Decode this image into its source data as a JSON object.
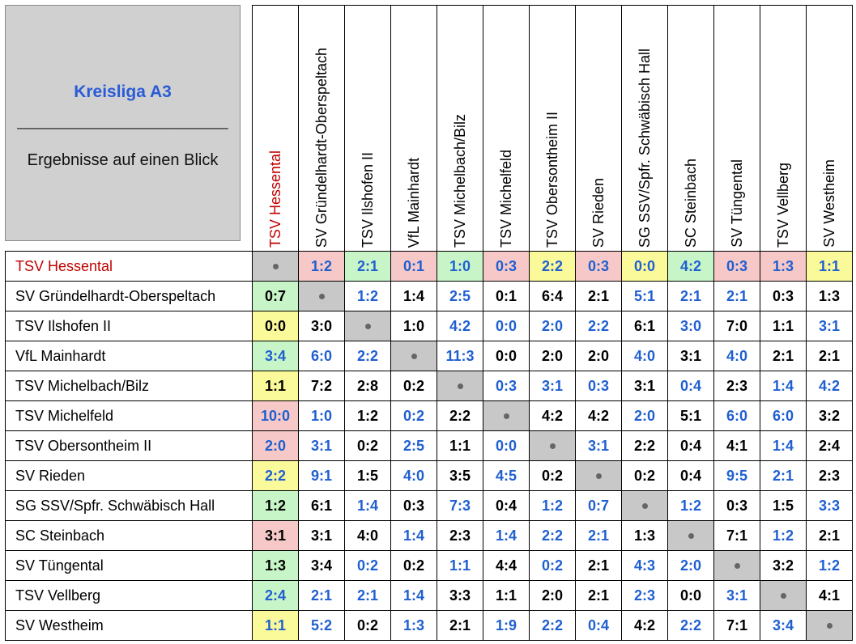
{
  "title": {
    "league": "Kreisliga A3",
    "separator": "__________________________",
    "subtitle": "Ergebnisse auf einen Blick"
  },
  "colors": {
    "highlight_team": "#c00000",
    "blue_score": "#1f5fd0",
    "black_score": "#000000",
    "diagonal": "#c8c8c8",
    "green": "#c8f5c8",
    "pink": "#f7c8c8",
    "yellow": "#fafa9a"
  },
  "teams": [
    "TSV Hessental",
    "SV Gründelhardt-Oberspeltach",
    "TSV Ilshofen II",
    "VfL Mainhardt",
    "TSV Michelbach/Bilz",
    "TSV Michelfeld",
    "TSV Obersontheim II",
    "SV Rieden",
    "SG SSV/Spfr. Schwäbisch Hall",
    "SC Steinbach",
    "SV Tüngental",
    "TSV Vellberg",
    "SV Westheim"
  ],
  "highlight_team_index": 0,
  "results": [
    [
      null,
      "1:2",
      "2:1",
      "0:1",
      "1:0",
      "0:3",
      "2:2",
      "0:3",
      "0:0",
      "4:2",
      "0:3",
      "1:3",
      "1:1"
    ],
    [
      "0:7",
      null,
      "1:2",
      "1:4",
      "2:5",
      "0:1",
      "6:4",
      "2:1",
      "5:1",
      "2:1",
      "2:1",
      "0:3",
      "1:3"
    ],
    [
      "0:0",
      "3:0",
      null,
      "1:0",
      "4:2",
      "0:0",
      "2:0",
      "2:2",
      "6:1",
      "3:0",
      "7:0",
      "1:1",
      "3:1"
    ],
    [
      "3:4",
      "6:0",
      "2:2",
      null,
      "11:3",
      "0:0",
      "2:0",
      "2:0",
      "4:0",
      "3:1",
      "4:0",
      "2:1",
      "2:1"
    ],
    [
      "1:1",
      "7:2",
      "2:8",
      "0:2",
      null,
      "0:3",
      "3:1",
      "0:3",
      "3:1",
      "0:4",
      "2:3",
      "1:4",
      "4:2"
    ],
    [
      "10:0",
      "1:0",
      "1:2",
      "0:2",
      "2:2",
      null,
      "4:2",
      "4:2",
      "2:0",
      "5:1",
      "6:0",
      "6:0",
      "3:2"
    ],
    [
      "2:0",
      "3:1",
      "0:2",
      "2:5",
      "1:1",
      "0:0",
      null,
      "3:1",
      "2:2",
      "0:4",
      "4:1",
      "1:4",
      "2:4"
    ],
    [
      "2:2",
      "9:1",
      "1:5",
      "4:0",
      "3:5",
      "4:5",
      "0:2",
      null,
      "0:2",
      "0:4",
      "9:5",
      "2:1",
      "2:3"
    ],
    [
      "1:2",
      "6:1",
      "1:4",
      "0:3",
      "7:3",
      "0:4",
      "1:2",
      "0:7",
      null,
      "1:2",
      "0:3",
      "1:5",
      "3:3"
    ],
    [
      "3:1",
      "3:1",
      "4:0",
      "1:4",
      "2:3",
      "1:4",
      "2:2",
      "2:1",
      "1:3",
      null,
      "7:1",
      "1:2",
      "2:1"
    ],
    [
      "1:3",
      "3:4",
      "0:2",
      "0:2",
      "1:1",
      "4:4",
      "0:2",
      "2:1",
      "4:3",
      "2:0",
      null,
      "3:2",
      "1:2"
    ],
    [
      "2:4",
      "2:1",
      "2:1",
      "1:4",
      "3:3",
      "1:1",
      "2:0",
      "2:1",
      "2:3",
      "0:0",
      "3:1",
      null,
      "4:1"
    ],
    [
      "1:1",
      "5:2",
      "0:2",
      "1:3",
      "2:1",
      "1:9",
      "2:2",
      "0:4",
      "4:2",
      "2:2",
      "7:1",
      "3:4",
      null
    ]
  ],
  "blue": [
    [
      0,
      1,
      1,
      1,
      1,
      1,
      1,
      1,
      1,
      1,
      1,
      1,
      1
    ],
    [
      0,
      0,
      1,
      0,
      1,
      0,
      0,
      0,
      1,
      1,
      1,
      0,
      0
    ],
    [
      0,
      0,
      0,
      0,
      1,
      1,
      1,
      1,
      0,
      1,
      0,
      0,
      1
    ],
    [
      1,
      1,
      1,
      0,
      1,
      0,
      0,
      0,
      1,
      0,
      1,
      0,
      0
    ],
    [
      0,
      0,
      0,
      0,
      0,
      1,
      1,
      1,
      0,
      1,
      0,
      1,
      1
    ],
    [
      1,
      1,
      0,
      1,
      0,
      0,
      0,
      0,
      1,
      0,
      1,
      1,
      0
    ],
    [
      1,
      1,
      0,
      1,
      0,
      1,
      0,
      1,
      0,
      0,
      0,
      1,
      0
    ],
    [
      1,
      1,
      0,
      1,
      0,
      1,
      0,
      0,
      0,
      0,
      1,
      1,
      0
    ],
    [
      0,
      0,
      1,
      0,
      1,
      0,
      1,
      1,
      0,
      1,
      0,
      0,
      1
    ],
    [
      0,
      0,
      0,
      1,
      0,
      1,
      1,
      1,
      0,
      0,
      0,
      1,
      0
    ],
    [
      0,
      0,
      1,
      0,
      1,
      0,
      1,
      0,
      1,
      1,
      0,
      0,
      1
    ],
    [
      1,
      1,
      1,
      1,
      0,
      0,
      0,
      0,
      1,
      0,
      1,
      0,
      0
    ],
    [
      1,
      1,
      0,
      1,
      0,
      1,
      1,
      1,
      0,
      1,
      0,
      1,
      0
    ]
  ],
  "first_row_colors": [
    "diagonal",
    "pink",
    "green",
    "pink",
    "green",
    "pink",
    "yellow",
    "pink",
    "yellow",
    "green",
    "pink",
    "pink",
    "yellow"
  ],
  "first_col_colors": [
    "diagonal",
    "green",
    "yellow",
    "green",
    "yellow",
    "pink",
    "pink",
    "yellow",
    "green",
    "pink",
    "green",
    "green",
    "yellow"
  ]
}
